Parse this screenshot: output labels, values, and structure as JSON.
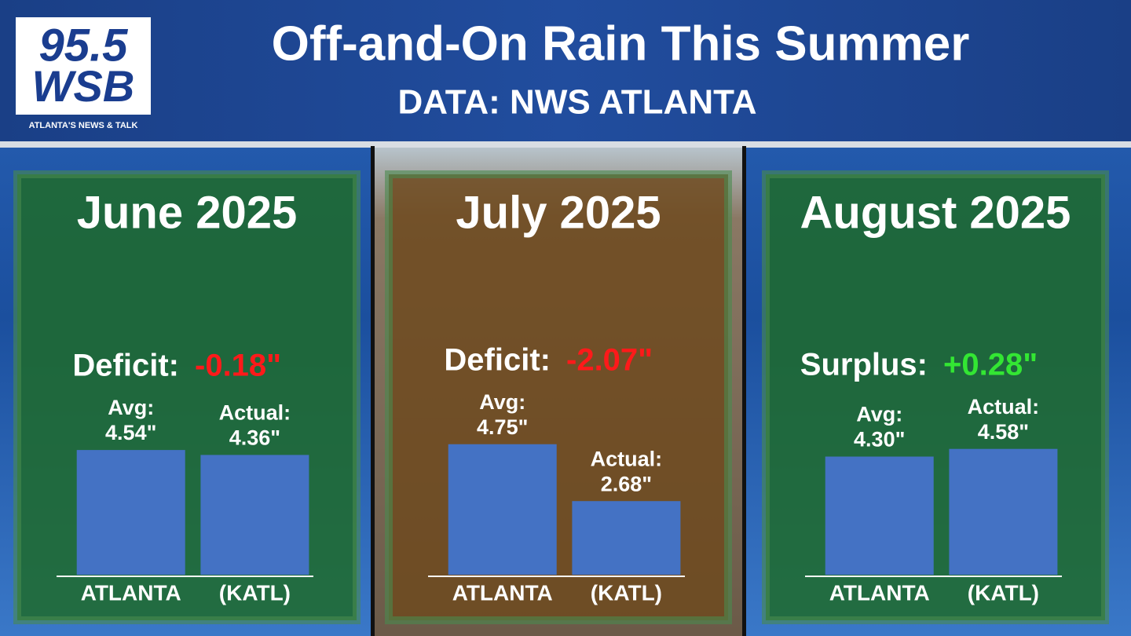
{
  "header": {
    "logo_number": "95.5",
    "logo_name": "WSB",
    "tagline": "ATLANTA'S NEWS & TALK",
    "title": "Off-and-On Rain This Summer",
    "subtitle": "DATA: NWS ATLANTA"
  },
  "chart_data": [
    {
      "type": "bar",
      "title": "June 2025",
      "annotation_label": "Deficit:",
      "annotation_value": "-0.18\"",
      "annotation_color": "#ff1a1a",
      "panel_color": "#1f6b2a",
      "categories": [
        "ATLANTA",
        "(KATL)"
      ],
      "bar_labels": [
        "Avg:",
        "Actual:"
      ],
      "values": [
        4.54,
        4.36
      ],
      "value_labels": [
        "4.54\"",
        "4.36\""
      ],
      "color": "#4472c4"
    },
    {
      "type": "bar",
      "title": "July 2025",
      "annotation_label": "Deficit:",
      "annotation_value": "-2.07\"",
      "annotation_color": "#ff1a1a",
      "panel_color": "#6e4a1e",
      "categories": [
        "ATLANTA",
        "(KATL)"
      ],
      "bar_labels": [
        "Avg:",
        "Actual:"
      ],
      "values": [
        4.75,
        2.68
      ],
      "value_labels": [
        "4.75\"",
        "2.68\""
      ],
      "color": "#4472c4"
    },
    {
      "type": "bar",
      "title": "August 2025",
      "annotation_label": "Surplus:",
      "annotation_value": "+0.28\"",
      "annotation_color": "#33e633",
      "panel_color": "#1f6b2a",
      "categories": [
        "ATLANTA",
        "(KATL)"
      ],
      "bar_labels": [
        "Avg:",
        "Actual:"
      ],
      "values": [
        4.3,
        4.58
      ],
      "value_labels": [
        "4.30\"",
        "4.58\""
      ],
      "color": "#4472c4"
    }
  ]
}
